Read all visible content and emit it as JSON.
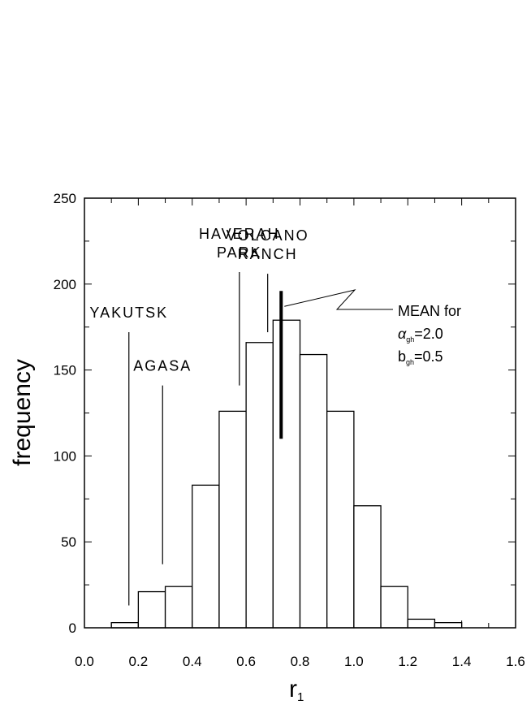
{
  "chart_data": {
    "type": "bar",
    "subtype": "histogram",
    "xlabel": "r",
    "xlabel_subscript": "1",
    "ylabel": "frequency",
    "xlim": [
      0.0,
      1.6
    ],
    "ylim": [
      0,
      250
    ],
    "x_ticks": [
      "0.0",
      "0.2",
      "0.4",
      "0.6",
      "0.8",
      "1.0",
      "1.2",
      "1.4",
      "1.6"
    ],
    "y_ticks": [
      "0",
      "50",
      "100",
      "150",
      "200",
      "250"
    ],
    "bins": [
      {
        "x0": 0.1,
        "x1": 0.2,
        "value": 3
      },
      {
        "x0": 0.2,
        "x1": 0.3,
        "value": 21
      },
      {
        "x0": 0.3,
        "x1": 0.4,
        "value": 24
      },
      {
        "x0": 0.4,
        "x1": 0.5,
        "value": 83
      },
      {
        "x0": 0.5,
        "x1": 0.6,
        "value": 126
      },
      {
        "x0": 0.6,
        "x1": 0.7,
        "value": 166
      },
      {
        "x0": 0.7,
        "x1": 0.8,
        "value": 179
      },
      {
        "x0": 0.8,
        "x1": 0.9,
        "value": 159
      },
      {
        "x0": 0.9,
        "x1": 1.0,
        "value": 126
      },
      {
        "x0": 1.0,
        "x1": 1.1,
        "value": 71
      },
      {
        "x0": 1.1,
        "x1": 1.2,
        "value": 24
      },
      {
        "x0": 1.2,
        "x1": 1.3,
        "value": 5
      },
      {
        "x0": 1.3,
        "x1": 1.4,
        "value": 3
      }
    ],
    "experiments": [
      {
        "lines": [
          "YAKUTSK"
        ],
        "x": 0.165,
        "y_bottom": 13,
        "y_top": 172
      },
      {
        "lines": [
          "AGASA"
        ],
        "x": 0.29,
        "y_bottom": 37,
        "y_top": 141
      },
      {
        "lines": [
          "HAVERAH",
          "PARK"
        ],
        "x": 0.575,
        "y_bottom": 141,
        "y_top": 207
      },
      {
        "lines": [
          "VOLCANO",
          "RANCH"
        ],
        "x": 0.68,
        "y_bottom": 172,
        "y_top": 206
      }
    ],
    "mean_marker": {
      "x": 0.73,
      "y_bottom": 110,
      "y_top": 196
    },
    "mean_label": {
      "line1": "MEAN for",
      "line2_symbol": "α",
      "line2_sub": "gh",
      "line2_value": "=2.0",
      "line3_symbol": "b",
      "line3_sub": "gh",
      "line3_value": "=0.5"
    }
  }
}
